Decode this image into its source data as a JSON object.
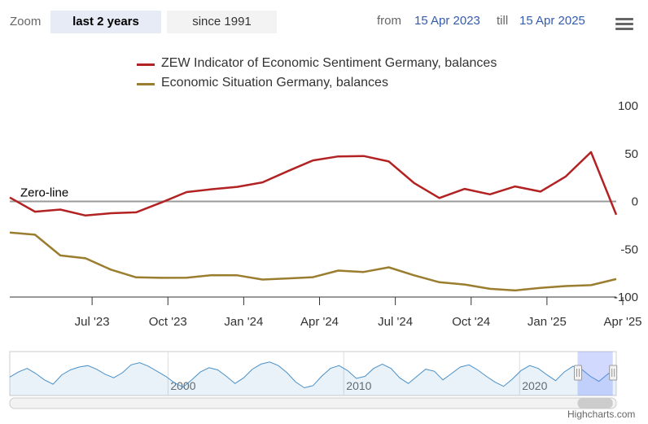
{
  "toolbar": {
    "zoom_label": "Zoom",
    "buttons": [
      "last 2 years",
      "since 1991"
    ],
    "from_label": "from",
    "from_value": "15 Apr 2023",
    "till_label": "till",
    "till_value": "15 Apr 2025"
  },
  "credits": "Highcharts.com",
  "colors": {
    "sentiment": "#b22222",
    "situation": "#9a7d2e",
    "navigator_line": "#4a90c8",
    "zero_line": "#999999"
  },
  "chart_data": {
    "type": "line",
    "x": [
      "2023-04",
      "2023-05",
      "2023-06",
      "2023-07",
      "2023-08",
      "2023-09",
      "2023-10",
      "2023-11",
      "2023-12",
      "2024-01",
      "2024-02",
      "2024-03",
      "2024-04",
      "2024-05",
      "2024-06",
      "2024-07",
      "2024-08",
      "2024-09",
      "2024-10",
      "2024-11",
      "2024-12",
      "2025-01",
      "2025-02",
      "2025-03",
      "2025-04"
    ],
    "series": [
      {
        "name": "ZEW Indicator of Economic Sentiment Germany, balances",
        "values": [
          4.1,
          -10.7,
          -8.5,
          -14.7,
          -12.3,
          -11.4,
          -1.1,
          9.8,
          12.8,
          15.2,
          19.9,
          31.7,
          42.9,
          47.1,
          47.5,
          41.8,
          19.2,
          3.6,
          13.1,
          7.4,
          15.7,
          10.3,
          26.0,
          51.6,
          -14.0
        ]
      },
      {
        "name": "Economic Situation Germany, balances",
        "values": [
          -32.5,
          -34.8,
          -56.5,
          -59.5,
          -71.3,
          -79.4,
          -79.9,
          -79.8,
          -77.1,
          -77.3,
          -81.7,
          -80.5,
          -79.2,
          -72.3,
          -73.8,
          -68.9,
          -77.3,
          -84.5,
          -86.9,
          -91.4,
          -93.1,
          -90.4,
          -88.5,
          -87.6,
          -81.2
        ]
      }
    ],
    "xticks": [
      "Jul '23",
      "Oct '23",
      "Jan '24",
      "Apr '24",
      "Jul '24",
      "Oct '24",
      "Jan '25",
      "Apr '25"
    ],
    "xtick_dates": [
      "2023-07",
      "2023-10",
      "2024-01",
      "2024-04",
      "2024-07",
      "2024-10",
      "2025-01",
      "2025-04"
    ],
    "yticks": [
      100,
      50,
      0,
      -50,
      -100
    ],
    "ylim": [
      -100,
      100
    ],
    "annotations": [
      {
        "text": "Zero-line",
        "y": 0
      }
    ],
    "navigator": {
      "labels": [
        "2000",
        "2010",
        "2020"
      ],
      "range": [
        1991,
        2025.5
      ],
      "selected": [
        2023.3,
        2025.3
      ],
      "values": [
        38,
        52,
        62,
        48,
        30,
        18,
        44,
        58,
        66,
        70,
        60,
        46,
        36,
        50,
        72,
        78,
        68,
        54,
        40,
        22,
        10,
        30,
        52,
        64,
        58,
        40,
        20,
        36,
        60,
        74,
        80,
        70,
        50,
        24,
        8,
        14,
        40,
        62,
        70,
        56,
        34,
        40,
        62,
        74,
        62,
        36,
        20,
        40,
        60,
        54,
        30,
        48,
        66,
        72,
        58,
        40,
        24,
        12,
        32,
        56,
        70,
        62,
        44,
        28,
        52,
        68,
        60,
        40,
        26,
        46,
        62
      ]
    }
  }
}
